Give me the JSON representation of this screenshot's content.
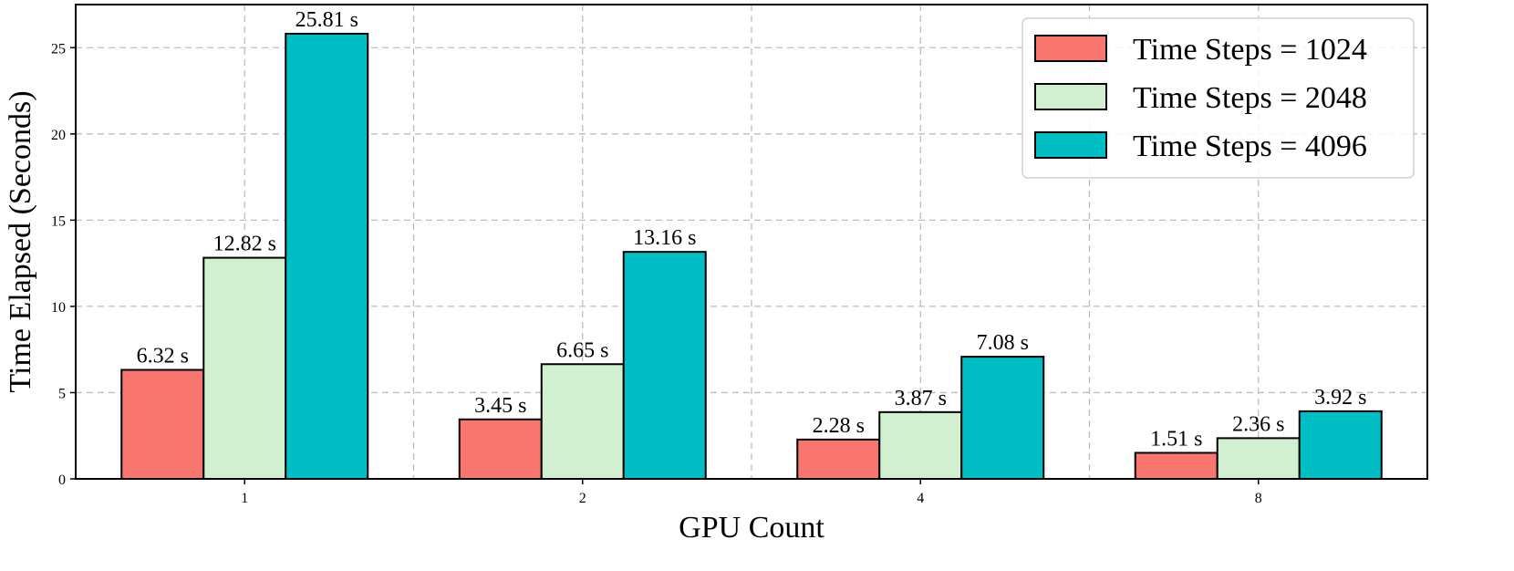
{
  "chart_data": {
    "type": "bar",
    "xlabel": "GPU Count",
    "ylabel": "Time Elapsed (Seconds)",
    "categories": [
      "1",
      "2",
      "4",
      "8"
    ],
    "ylim": [
      0,
      27.5
    ],
    "yticks": [
      0,
      5,
      10,
      15,
      20,
      25
    ],
    "grid": true,
    "legend_position": "top-right",
    "value_suffix": " s",
    "series": [
      {
        "name": "Time Steps = 1024",
        "color": "#f8766d",
        "values": [
          6.32,
          3.45,
          2.28,
          1.51
        ]
      },
      {
        "name": "Time Steps = 2048",
        "color": "#d0f0d0",
        "values": [
          12.82,
          6.65,
          3.87,
          2.36
        ]
      },
      {
        "name": "Time Steps = 4096",
        "color": "#00bfc4",
        "values": [
          25.81,
          13.16,
          7.08,
          3.92
        ]
      }
    ]
  }
}
